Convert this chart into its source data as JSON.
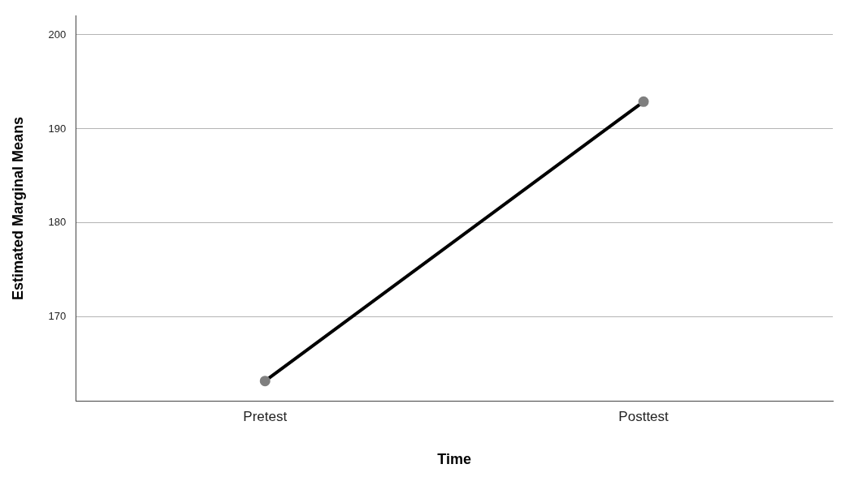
{
  "chart_data": {
    "type": "line",
    "xlabel": "Time",
    "ylabel": "Estimated Marginal Means",
    "categories": [
      "Pretest",
      "Posttest"
    ],
    "series": [
      {
        "color": "#000000",
        "values": [
          163.2,
          192.9
        ]
      }
    ],
    "ylim": [
      161.1,
      202
    ],
    "yticks": [
      170,
      180,
      190,
      200
    ],
    "grid": "y",
    "legend": false,
    "marker": "circle",
    "line_style": "solid"
  }
}
